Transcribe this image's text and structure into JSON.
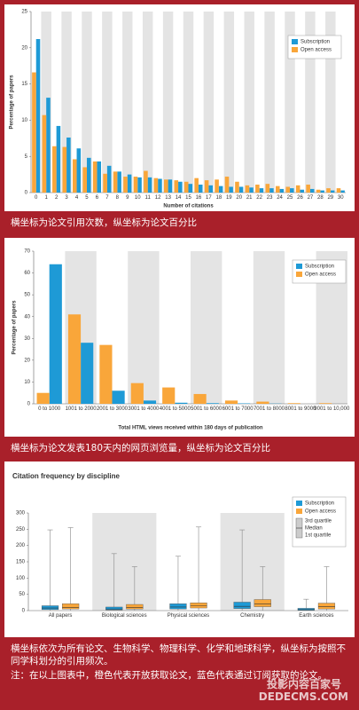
{
  "chart_data": [
    {
      "type": "bar",
      "ylabel": "Percentage of papers",
      "xlabel": "Number of citations",
      "categories": [
        "0",
        "1",
        "2",
        "3",
        "4",
        "5",
        "6",
        "7",
        "8",
        "9",
        "10",
        "11",
        "12",
        "13",
        "14",
        "15",
        "16",
        "17",
        "18",
        "19",
        "20",
        "21",
        "22",
        "23",
        "24",
        "25",
        "26",
        "27",
        "28",
        "29",
        "30"
      ],
      "series": [
        {
          "name": "Subscription",
          "color": "#1e9ad6",
          "values": [
            21.2,
            13.1,
            9.2,
            7.6,
            6.1,
            4.8,
            4.3,
            3.7,
            2.9,
            2.5,
            2.1,
            2.1,
            1.9,
            1.8,
            1.5,
            1.2,
            1.1,
            1.0,
            0.9,
            0.8,
            0.8,
            0.7,
            0.6,
            0.6,
            0.5,
            0.6,
            0.4,
            0.5,
            0.3,
            0.3,
            0.3
          ]
        },
        {
          "name": "Open access",
          "color": "#f9a63a",
          "values": [
            16.6,
            10.7,
            6.4,
            6.3,
            4.6,
            3.5,
            4.3,
            2.6,
            2.9,
            2.2,
            2.2,
            3.0,
            2.0,
            1.8,
            1.7,
            1.5,
            2.0,
            1.7,
            1.8,
            2.2,
            1.5,
            1.0,
            1.1,
            1.2,
            0.9,
            0.8,
            1.0,
            1.1,
            0.4,
            0.6,
            0.6
          ]
        }
      ],
      "ylim": [
        0,
        25
      ],
      "yticks": [
        0,
        5,
        10,
        15,
        20,
        25
      ],
      "bands": true,
      "caption": "横坐标为论文引用次数，纵坐标为论文百分比"
    },
    {
      "type": "bar",
      "ylabel": "Percentage of papers",
      "xlabel": "Total HTML views received within 180 days of publication",
      "categories": [
        "0 to 1000",
        "1001 to 2000",
        "2001 to 3000",
        "3001 to 4000",
        "4001 to 5000",
        "5001 to 6000",
        "6001 to 7000",
        "7001 to 8000",
        "8001 to 9000",
        "9001 to 10,000"
      ],
      "series": [
        {
          "name": "Subscription",
          "color": "#1e9ad6",
          "values": [
            64,
            28,
            6,
            1.5,
            0.5,
            0.3,
            0.2,
            0.1,
            0,
            0
          ]
        },
        {
          "name": "Open access",
          "color": "#f9a63a",
          "values": [
            5,
            41,
            27,
            9.5,
            7.5,
            4.5,
            1.5,
            1,
            0.3,
            0.3
          ]
        }
      ],
      "ylim": [
        0,
        70
      ],
      "yticks": [
        0,
        10,
        20,
        30,
        40,
        50,
        60,
        70
      ],
      "bands": true,
      "caption": "横坐标为论文发表180天内的网页浏览量，纵坐标为论文百分比"
    },
    {
      "type": "box",
      "title": "Citation frequency by discipline",
      "categories": [
        "All papers",
        "Biological sciences",
        "Physical sciences",
        "Chemistry",
        "Earth sciences"
      ],
      "series": [
        {
          "name": "Subscription",
          "color": "#1e9ad6",
          "min": [
            0,
            0,
            0,
            0,
            0
          ],
          "q1": [
            3,
            2,
            5,
            6,
            1
          ],
          "median": [
            8,
            5,
            11,
            13,
            3
          ],
          "q3": [
            15,
            11,
            21,
            26,
            7
          ],
          "max": [
            248,
            175,
            167,
            248,
            35
          ]
        },
        {
          "name": "Open access",
          "color": "#f9a63a",
          "min": [
            0,
            0,
            0,
            0,
            0
          ],
          "q1": [
            5,
            5,
            8,
            12,
            5
          ],
          "median": [
            10,
            10,
            15,
            20,
            12
          ],
          "q3": [
            21,
            19,
            24,
            34,
            23
          ],
          "max": [
            255,
            135,
            257,
            135,
            135
          ]
        }
      ],
      "box_legend": [
        "3rd quartile",
        "Median",
        "1st quartile"
      ],
      "ylim": [
        0,
        300
      ],
      "yticks": [
        0,
        50,
        100,
        150,
        200,
        250,
        300
      ],
      "bands": true,
      "caption": "横坐标依次为所有论文、生物科学、物理科学、化学和地球科学，纵坐标为按照不同学科划分的引用频次。",
      "note": "注：在以上图表中，橙色代表开放获取论文，蓝色代表通过订阅获取的论文。"
    }
  ],
  "watermark": [
    "投影内容百家号",
    "DEDECMS.COM"
  ]
}
